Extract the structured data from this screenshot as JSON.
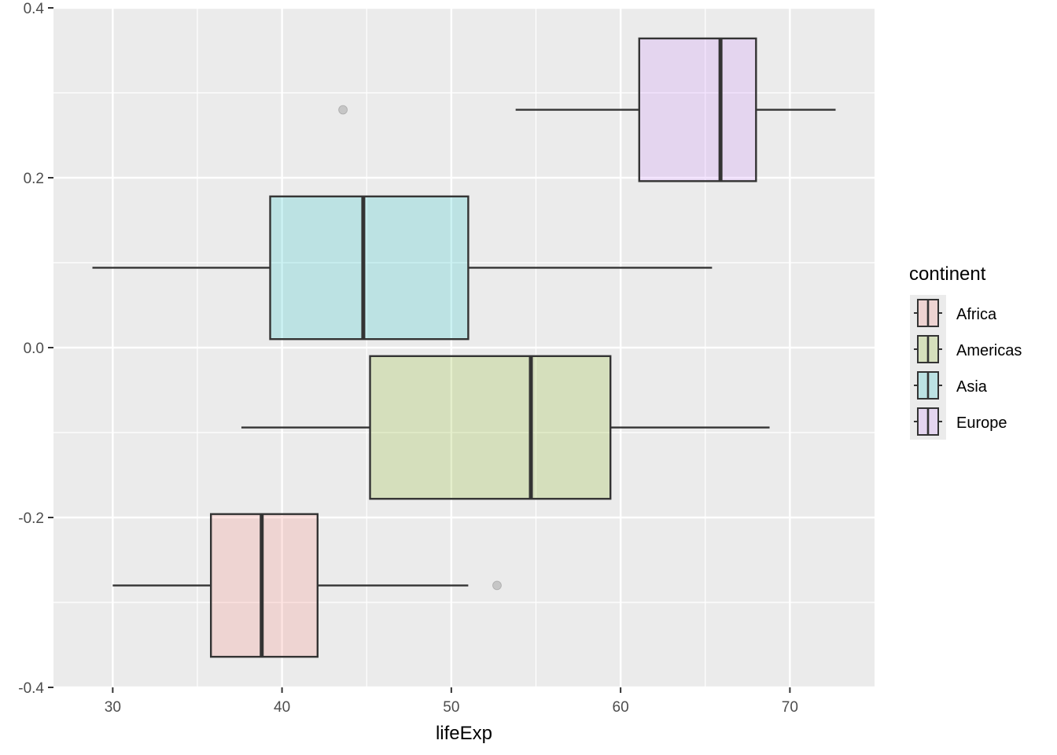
{
  "chart_data": {
    "type": "boxplot",
    "orientation": "horizontal",
    "xlabel": "lifeExp",
    "ylabel": "",
    "xlim": [
      26.5,
      75
    ],
    "ylim": [
      -0.4,
      0.4
    ],
    "x_ticks": [
      30,
      40,
      50,
      60,
      70
    ],
    "x_tick_labels": [
      "30",
      "40",
      "50",
      "60",
      "70"
    ],
    "y_ticks": [
      -0.4,
      -0.2,
      0.0,
      0.2,
      0.4
    ],
    "y_tick_labels": [
      "-0.4",
      "-0.2",
      "0.0",
      "0.2",
      "0.4"
    ],
    "grid": true,
    "legend": {
      "title": "continent",
      "position": "right",
      "entries": [
        "Africa",
        "Americas",
        "Asia",
        "Europe"
      ]
    },
    "series": [
      {
        "name": "Africa",
        "color": "#F8766D",
        "y_center": -0.28,
        "y_half_width": 0.084,
        "whisker_low": 30.0,
        "q1": 35.8,
        "median": 38.8,
        "q3": 42.1,
        "whisker_high": 51.0,
        "outliers": [
          52.7
        ]
      },
      {
        "name": "Americas",
        "color": "#7CAE00",
        "y_center": -0.094,
        "y_half_width": 0.084,
        "whisker_low": 37.6,
        "q1": 45.2,
        "median": 54.7,
        "q3": 59.4,
        "whisker_high": 68.8,
        "outliers": []
      },
      {
        "name": "Asia",
        "color": "#00BFC4",
        "y_center": 0.094,
        "y_half_width": 0.084,
        "whisker_low": 28.8,
        "q1": 39.3,
        "median": 44.8,
        "q3": 51.0,
        "whisker_high": 65.4,
        "outliers": []
      },
      {
        "name": "Europe",
        "color": "#C77CFF",
        "y_center": 0.28,
        "y_half_width": 0.084,
        "whisker_low": 53.8,
        "q1": 61.1,
        "median": 65.9,
        "q3": 68.0,
        "whisker_high": 72.7,
        "outliers": [
          43.6
        ]
      }
    ]
  }
}
